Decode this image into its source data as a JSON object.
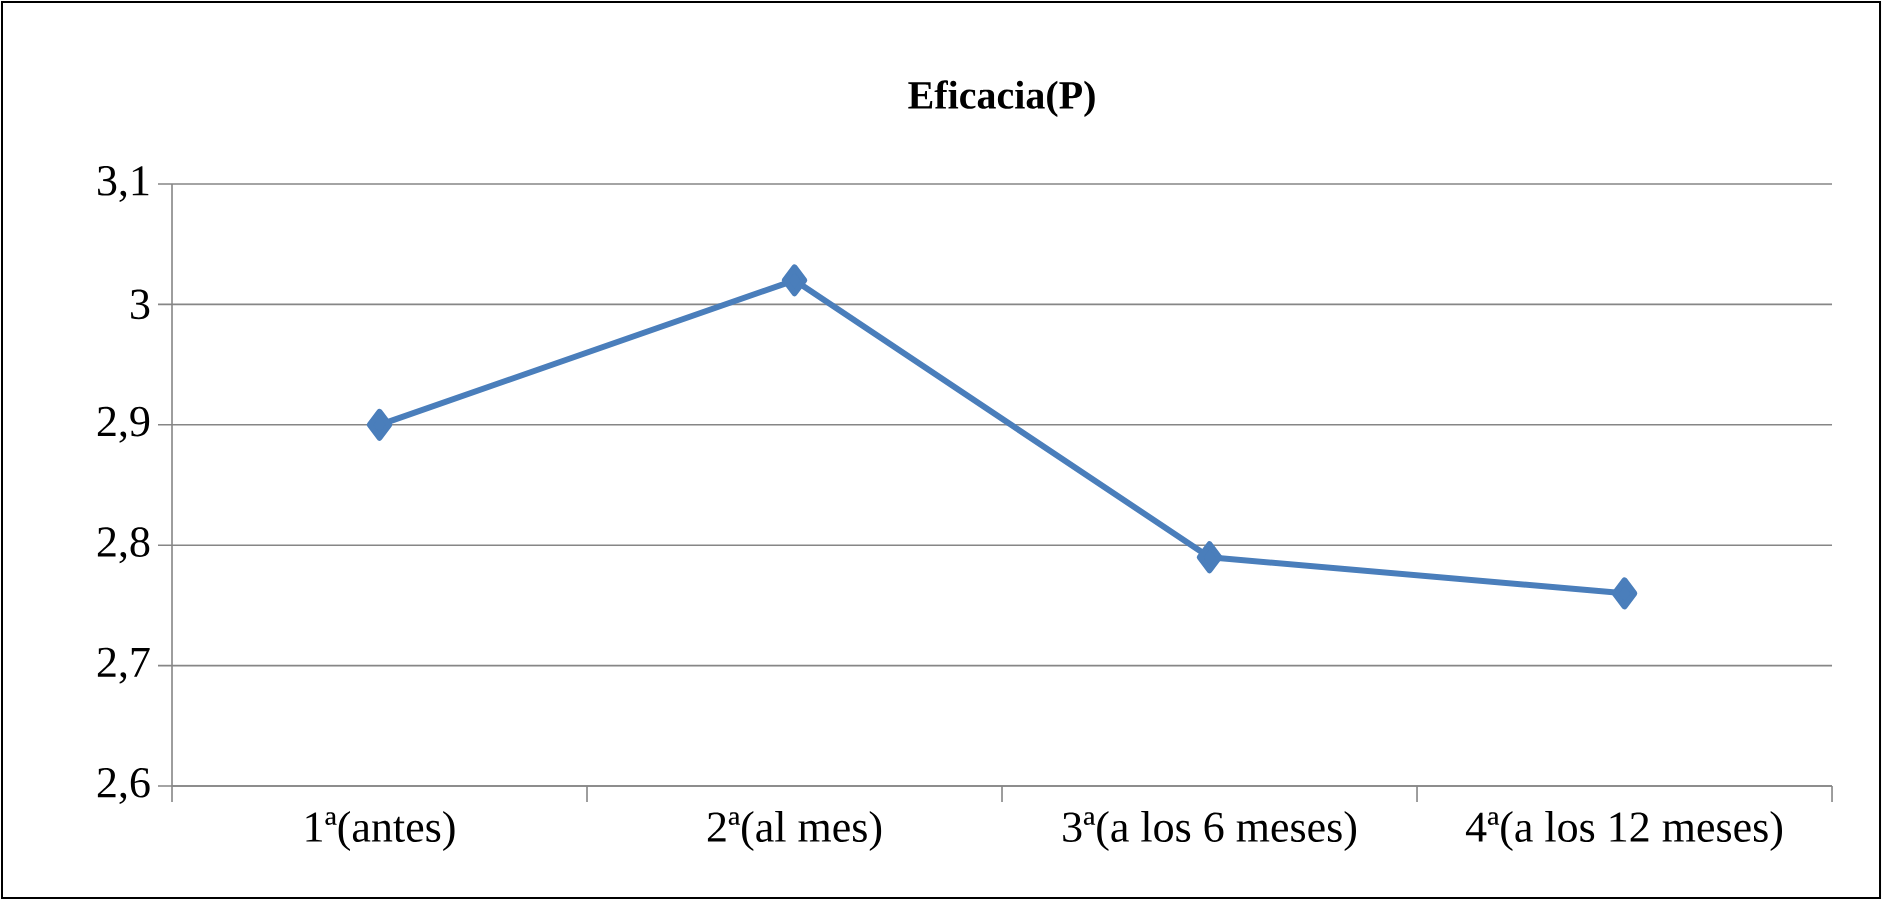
{
  "chart_data": {
    "type": "line",
    "title": "**Eficacia(P)**",
    "categories": [
      "1ª(antes)",
      "2ª(al mes)",
      "3ª(a los 6 meses)",
      "4ª(a los 12 meses)"
    ],
    "values": [
      2.9,
      3.02,
      2.79,
      2.76
    ],
    "color": "#4a7ebb",
    "marker": "diamond",
    "line_style": "solid",
    "grid": "y",
    "ylim": [
      2.6,
      3.1
    ],
    "yticks": [
      {
        "value": 2.6,
        "label": "2,6"
      },
      {
        "value": 2.7,
        "label": "2,7"
      },
      {
        "value": 2.8,
        "label": "2,8"
      },
      {
        "value": 2.9,
        "label": "2,9"
      },
      {
        "value": 3,
        "label": "3"
      },
      {
        "value": 3.1,
        "label": "3,1"
      }
    ]
  }
}
